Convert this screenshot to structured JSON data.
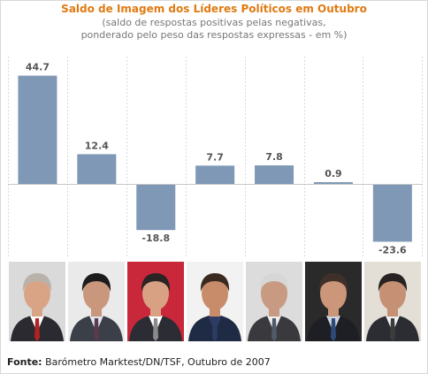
{
  "chart_data": {
    "type": "bar",
    "title": "Saldo de Imagem dos Líderes Políticos em Outubro",
    "subtitle_lines": [
      "(saldo de respostas positivas pelas negativas,",
      "ponderado pelo peso das respostas expressas - em %)"
    ],
    "categories": [
      "",
      "",
      "",
      "",
      "",
      "",
      ""
    ],
    "values": [
      44.7,
      12.4,
      -18.8,
      7.7,
      7.8,
      0.9,
      -23.6
    ],
    "value_labels": [
      "44.7",
      "12.4",
      "-18.8",
      "7.7",
      "7.8",
      "0.9",
      "-23.6"
    ],
    "ylim": [
      -23.6,
      44.7
    ],
    "grid": "vertical dashed",
    "bar_color": "#7f98b5"
  },
  "photos": [
    {
      "bg": "#dadada",
      "suit": "#2a2a30",
      "shirt": "#ffffff",
      "tie": "#b22222",
      "skin": "#d9a486",
      "hair": "#b9b2aa"
    },
    {
      "bg": "#eaeaea",
      "suit": "#3b3f48",
      "shirt": "#dfe6f0",
      "tie": "#5b3a4a",
      "skin": "#c9987c",
      "hair": "#1c1c1c"
    },
    {
      "bg": "#c8283a",
      "suit": "#2c2c34",
      "shirt": "#ffffff",
      "tie": "#8a8a8a",
      "skin": "#d8a183",
      "hair": "#2a2424"
    },
    {
      "bg": "#f2f2f2",
      "suit": "#1f2a44",
      "shirt": "#2c3c63",
      "tie": "#2c3c63",
      "skin": "#c88c6b",
      "hair": "#3a2a20"
    },
    {
      "bg": "#dcdcdc",
      "suit": "#3a3a3e",
      "shirt": "#eeeeee",
      "tie": "#505a6a",
      "skin": "#c89a82",
      "hair": "#d6d6d6"
    },
    {
      "bg": "#2a2a2a",
      "suit": "#1e1f24",
      "shirt": "#cfd6e2",
      "tie": "#2e4a78",
      "skin": "#cc967a",
      "hair": "#40302a"
    },
    {
      "bg": "#e4dfd6",
      "suit": "#2b2d33",
      "shirt": "#f2f2f2",
      "tie": "#3c3c3c",
      "skin": "#c69074",
      "hair": "#282222"
    }
  ],
  "source": {
    "label": "Fonte:",
    "text": " Barómetro Marktest/DN/TSF, Outubro de 2007"
  }
}
